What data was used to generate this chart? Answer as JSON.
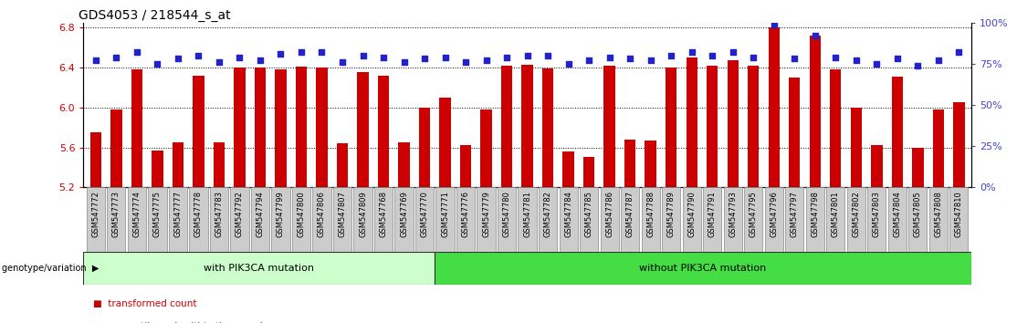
{
  "title": "GDS4053 / 218544_s_at",
  "samples": [
    "GSM547772",
    "GSM547773",
    "GSM547774",
    "GSM547775",
    "GSM547777",
    "GSM547778",
    "GSM547783",
    "GSM547792",
    "GSM547794",
    "GSM547799",
    "GSM547800",
    "GSM547806",
    "GSM547807",
    "GSM547809",
    "GSM547768",
    "GSM547769",
    "GSM547770",
    "GSM547771",
    "GSM547776",
    "GSM547779",
    "GSM547780",
    "GSM547781",
    "GSM547782",
    "GSM547784",
    "GSM547785",
    "GSM547786",
    "GSM547787",
    "GSM547788",
    "GSM547789",
    "GSM547790",
    "GSM547791",
    "GSM547793",
    "GSM547795",
    "GSM547796",
    "GSM547797",
    "GSM547798",
    "GSM547801",
    "GSM547802",
    "GSM547803",
    "GSM547804",
    "GSM547805",
    "GSM547808",
    "GSM547810"
  ],
  "bar_values": [
    5.75,
    5.98,
    6.38,
    5.57,
    5.65,
    6.32,
    5.65,
    6.4,
    6.4,
    6.38,
    6.41,
    6.4,
    5.64,
    6.35,
    6.32,
    5.65,
    6.0,
    6.1,
    5.62,
    5.98,
    6.42,
    6.43,
    6.39,
    5.56,
    5.5,
    6.42,
    5.68,
    5.67,
    6.4,
    6.5,
    6.42,
    6.47,
    6.42,
    6.8,
    6.3,
    6.72,
    6.38,
    6.0,
    5.62,
    6.31,
    5.6,
    5.98,
    6.05
  ],
  "percentile_values": [
    77,
    79,
    82,
    75,
    78,
    80,
    76,
    79,
    77,
    81,
    82,
    82,
    76,
    80,
    79,
    76,
    78,
    79,
    76,
    77,
    79,
    80,
    80,
    75,
    77,
    79,
    78,
    77,
    80,
    82,
    80,
    82,
    79,
    99,
    78,
    92,
    79,
    77,
    75,
    78,
    74,
    77,
    82
  ],
  "n_with": 17,
  "n_total": 43,
  "ylim_left": [
    5.2,
    6.85
  ],
  "yticks_left": [
    5.2,
    5.6,
    6.0,
    6.4,
    6.8
  ],
  "yticks_right": [
    0,
    25,
    50,
    75,
    100
  ],
  "bar_color": "#cc0000",
  "dot_color": "#2222cc",
  "with_color": "#ccffcc",
  "without_color": "#44dd44",
  "tick_label_color": "#cc0000",
  "right_axis_color": "#4444cc",
  "xticklabel_bg": "#cccccc",
  "title_fontsize": 10,
  "tick_fontsize": 8,
  "xtick_fontsize": 6.0
}
